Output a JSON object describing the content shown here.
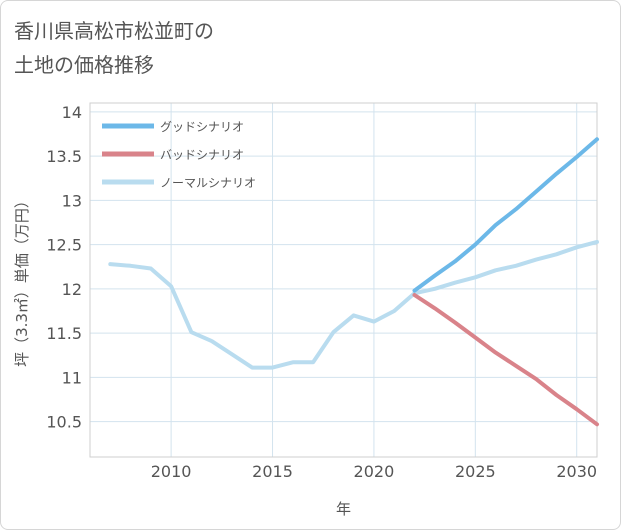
{
  "title": {
    "line1": "香川県高松市松並町の",
    "line2": "土地の価格推移"
  },
  "chart_data": {
    "type": "line",
    "xlabel": "年",
    "ylabel": "坪（3.3㎡）単価（万円）",
    "xlim": [
      2006,
      2031
    ],
    "ylim": [
      10.1,
      14.1
    ],
    "x_ticks": [
      2010,
      2015,
      2020,
      2025,
      2030
    ],
    "y_ticks": [
      10.5,
      11,
      11.5,
      12,
      12.5,
      13,
      13.5,
      14
    ],
    "x_tick_labels": [
      "2010",
      "2015",
      "2020",
      "2025",
      "2030"
    ],
    "y_tick_labels": [
      "10.5",
      "11",
      "11.5",
      "12",
      "12.5",
      "13",
      "13.5",
      "14"
    ],
    "grid": true,
    "legend_position": "top-left",
    "series": [
      {
        "name": "グッドシナリオ",
        "color": "#6cb8e8",
        "x": [
          2022,
          2023,
          2024,
          2025,
          2026,
          2027,
          2028,
          2029,
          2030,
          2031
        ],
        "y": [
          11.98,
          12.15,
          12.31,
          12.5,
          12.72,
          12.9,
          13.1,
          13.3,
          13.49,
          13.69
        ]
      },
      {
        "name": "バッドシナリオ",
        "color": "#d9838a",
        "x": [
          2022,
          2023,
          2024,
          2025,
          2026,
          2027,
          2028,
          2029,
          2030,
          2031
        ],
        "y": [
          11.93,
          11.78,
          11.62,
          11.45,
          11.28,
          11.13,
          10.98,
          10.8,
          10.64,
          10.47
        ]
      },
      {
        "name": "ノーマルシナリオ",
        "color": "#b9dcef",
        "x": [
          2007,
          2008,
          2009,
          2010,
          2011,
          2012,
          2013,
          2014,
          2015,
          2016,
          2017,
          2018,
          2019,
          2020,
          2021,
          2022,
          2023,
          2024,
          2025,
          2026,
          2027,
          2028,
          2029,
          2030,
          2031
        ],
        "y": [
          12.28,
          12.26,
          12.23,
          12.03,
          11.51,
          11.41,
          11.26,
          11.11,
          11.11,
          11.17,
          11.17,
          11.51,
          11.7,
          11.63,
          11.75,
          11.95,
          12.0,
          12.07,
          12.13,
          12.21,
          12.26,
          12.33,
          12.39,
          12.47,
          12.53
        ]
      }
    ]
  }
}
